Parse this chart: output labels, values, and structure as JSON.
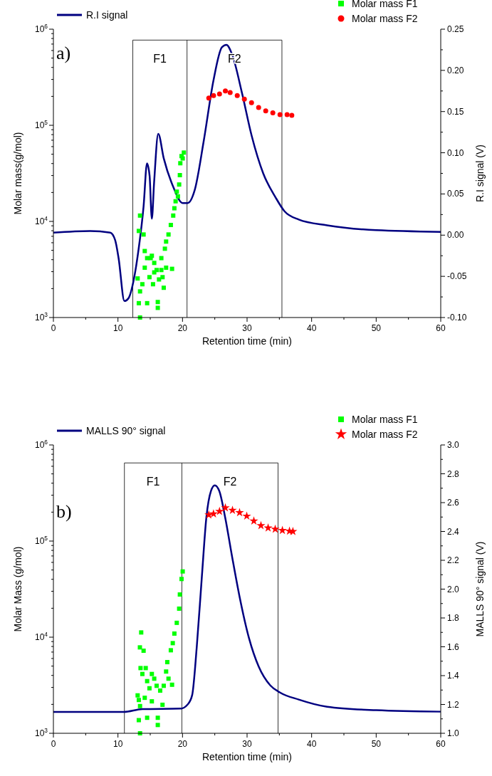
{
  "chart_data": [
    {
      "type": "scatter",
      "xlabel": "Retention time (min)",
      "ylabel": "Molar mass(g/mol)",
      "y2label": "R.I signal (V)",
      "annotations": [
        "a)",
        "F1",
        "F2"
      ],
      "ref_lines": [
        {
          "axis": "x",
          "value": 12.3,
          "color": "#000000"
        },
        {
          "axis": "x",
          "value": 20.7,
          "color": "#000000"
        },
        {
          "axis": "x",
          "value": 35.4,
          "color": "#000000"
        },
        {
          "axis": "y",
          "value": 770000,
          "color": "#000000"
        }
      ],
      "legend": "top",
      "log": "y",
      "xlim": [
        0,
        60
      ],
      "xticks": [
        0,
        {
          "value": 5,
          "label": null
        },
        10,
        {
          "value": 15,
          "label": null
        },
        20,
        {
          "value": 25,
          "label": null
        },
        30,
        {
          "value": 35,
          "label": null
        },
        40,
        {
          "value": 45,
          "label": null
        },
        50,
        {
          "value": 55,
          "label": null
        },
        60
      ],
      "ylim": [
        1000,
        1000000
      ],
      "yticks": [
        {
          "value": 1000,
          "label": "10$^{3}$"
        },
        {
          "value": 2000,
          "label": null
        },
        {
          "value": 3000,
          "label": null
        },
        {
          "value": 4000,
          "label": null
        },
        {
          "value": 5000,
          "label": null
        },
        {
          "value": 6000,
          "label": null
        },
        {
          "value": 7000,
          "label": null
        },
        {
          "value": 8000,
          "label": null
        },
        {
          "value": 9000,
          "label": null
        },
        {
          "value": 10000,
          "label": "10$^{4}$"
        },
        {
          "value": 20000,
          "label": null
        },
        {
          "value": 30000,
          "label": null
        },
        {
          "value": 40000,
          "label": null
        },
        {
          "value": 50000,
          "label": null
        },
        {
          "value": 60000,
          "label": null
        },
        {
          "value": 70000,
          "label": null
        },
        {
          "value": 80000,
          "label": null
        },
        {
          "value": 90000,
          "label": null
        },
        {
          "value": 100000,
          "label": "10$^{5}$"
        },
        {
          "value": 200000,
          "label": null
        },
        {
          "value": 300000,
          "label": null
        },
        {
          "value": 400000,
          "label": null
        },
        {
          "value": 500000,
          "label": null
        },
        {
          "value": 600000,
          "label": null
        },
        {
          "value": 700000,
          "label": null
        },
        {
          "value": 800000,
          "label": null
        },
        {
          "value": 900000,
          "label": null
        },
        {
          "value": 1000000,
          "label": "10$^{6}$"
        }
      ],
      "y2lim": [
        -0.1,
        0.25
      ],
      "y2ticks": [
        {
          "value": -0.1,
          "label": "-0.10"
        },
        {
          "value": -0.075,
          "label": null
        },
        {
          "value": -0.05,
          "label": "-0.05"
        },
        {
          "value": -0.025,
          "label": null
        },
        {
          "value": 0,
          "label": "0.00"
        },
        {
          "value": 0.025,
          "label": null
        },
        {
          "value": 0.05,
          "label": "0.05"
        },
        {
          "value": 0.075,
          "label": null
        },
        {
          "value": 0.1,
          "label": "0.10"
        },
        {
          "value": 0.125,
          "label": null
        },
        {
          "value": 0.15,
          "label": "0.15"
        },
        {
          "value": 0.175,
          "label": null
        },
        {
          "value": 0.2,
          "label": "0.20"
        },
        {
          "value": 0.225,
          "label": null
        },
        {
          "value": 0.25,
          "label": "0.25"
        }
      ],
      "series": [
        {
          "name": "R.I signal",
          "type": "line",
          "axis": "y2",
          "color": "#000080",
          "line_style": "solid",
          "x": [
            0,
            5.7,
            8.8,
            9.56,
            10.1,
            11.0,
            11.6,
            12.5,
            13.2,
            13.97,
            14.5,
            14.9,
            15.25,
            15.6,
            16.24,
            17.1,
            18.6,
            20.0,
            20.8,
            21.9,
            23.3,
            24.8,
            26.1,
            26.8,
            27.7,
            29.2,
            30.7,
            32.5,
            34.4,
            35.8,
            38.0,
            42.4,
            50,
            60
          ],
          "values": [
            0.003,
            0.005,
            0.003,
            -0.006,
            -0.028,
            -0.08,
            -0.077,
            -0.052,
            -0.017,
            0.035,
            0.087,
            0.072,
            0.02,
            0.064,
            0.123,
            0.093,
            0.058,
            0.039,
            0.039,
            0.055,
            0.115,
            0.188,
            0.228,
            0.231,
            0.219,
            0.173,
            0.121,
            0.075,
            0.046,
            0.029,
            0.019,
            0.012,
            0.006,
            0.004
          ]
        },
        {
          "name": "Molar mass F1",
          "color": "#00ff00",
          "marker": "square",
          "x": [
            13.05,
            13.23,
            13.23,
            13.42,
            13.42,
            13.42,
            13.78,
            13.97,
            14.15,
            14.15,
            14.52,
            14.52,
            14.88,
            15.07,
            15.25,
            15.43,
            15.62,
            15.62,
            15.99,
            16.17,
            16.17,
            16.36,
            16.72,
            16.72,
            16.91,
            17.09,
            17.27,
            17.46,
            17.46,
            17.83,
            18.19,
            18.38,
            18.56,
            18.74,
            18.93,
            19.11,
            19.29,
            19.48,
            19.59,
            19.66,
            19.85,
            20.03,
            20.21
          ],
          "values": [
            2550,
            7960,
            1410,
            11500,
            1870,
            1000,
            2220,
            7310,
            4920,
            3300,
            4150,
            1410,
            2630,
            4150,
            4390,
            2220,
            3700,
            2950,
            3120,
            1450,
            1260,
            2490,
            4150,
            3120,
            2630,
            2040,
            5200,
            3300,
            6170,
            7310,
            9180,
            3210,
            11500,
            13700,
            16200,
            20400,
            18200,
            24200,
            30300,
            40300,
            47800,
            45200,
            52000
          ]
        },
        {
          "name": "Molar mass F2",
          "color": "#ff0000",
          "marker": "circle",
          "x": [
            24.07,
            24.81,
            25.73,
            26.64,
            27.38,
            28.48,
            29.58,
            30.69,
            31.79,
            32.89,
            33.99,
            35.1,
            36.2,
            36.93
          ],
          "values": [
            192000,
            204000,
            212000,
            228000,
            219000,
            204000,
            187000,
            172000,
            153000,
            141000,
            135000,
            129000,
            129000,
            127000
          ]
        }
      ]
    },
    {
      "type": "scatter",
      "xlabel": "Retention time (min)",
      "ylabel": "Molar Mass (g/mol)",
      "y2label": "MALLS 90° signal (V)",
      "annotations": [
        "b)",
        "F1",
        "F2"
      ],
      "ref_lines": [
        {
          "axis": "x",
          "value": 11.0,
          "color": "#000000"
        },
        {
          "axis": "x",
          "value": 19.9,
          "color": "#000000"
        },
        {
          "axis": "x",
          "value": 34.8,
          "color": "#000000"
        },
        {
          "axis": "y",
          "value": 650000,
          "color": "#000000"
        }
      ],
      "legend": "top",
      "log": "y",
      "xlim": [
        0,
        60
      ],
      "xticks": [
        0,
        {
          "value": 5,
          "label": null
        },
        10,
        {
          "value": 15,
          "label": null
        },
        20,
        {
          "value": 25,
          "label": null
        },
        30,
        {
          "value": 35,
          "label": null
        },
        40,
        {
          "value": 45,
          "label": null
        },
        50,
        {
          "value": 55,
          "label": null
        },
        60
      ],
      "ylim": [
        1000,
        1000000
      ],
      "yticks": [
        {
          "value": 1000,
          "label": "10$^{3}$"
        },
        {
          "value": 2000,
          "label": null
        },
        {
          "value": 3000,
          "label": null
        },
        {
          "value": 4000,
          "label": null
        },
        {
          "value": 5000,
          "label": null
        },
        {
          "value": 6000,
          "label": null
        },
        {
          "value": 7000,
          "label": null
        },
        {
          "value": 8000,
          "label": null
        },
        {
          "value": 9000,
          "label": null
        },
        {
          "value": 10000,
          "label": "10$^{4}$"
        },
        {
          "value": 20000,
          "label": null
        },
        {
          "value": 30000,
          "label": null
        },
        {
          "value": 40000,
          "label": null
        },
        {
          "value": 50000,
          "label": null
        },
        {
          "value": 60000,
          "label": null
        },
        {
          "value": 70000,
          "label": null
        },
        {
          "value": 80000,
          "label": null
        },
        {
          "value": 90000,
          "label": null
        },
        {
          "value": 100000,
          "label": "10$^{5}$"
        },
        {
          "value": 200000,
          "label": null
        },
        {
          "value": 300000,
          "label": null
        },
        {
          "value": 400000,
          "label": null
        },
        {
          "value": 500000,
          "label": null
        },
        {
          "value": 600000,
          "label": null
        },
        {
          "value": 700000,
          "label": null
        },
        {
          "value": 800000,
          "label": null
        },
        {
          "value": 900000,
          "label": null
        },
        {
          "value": 1000000,
          "label": "10$^{6}$"
        }
      ],
      "y2lim": [
        1.0,
        3.0
      ],
      "y2ticks": [
        {
          "value": 1.0,
          "label": "1.0"
        },
        {
          "value": 1.1,
          "label": null
        },
        {
          "value": 1.2,
          "label": "1.2"
        },
        {
          "value": 1.3,
          "label": null
        },
        {
          "value": 1.4,
          "label": "1.4"
        },
        {
          "value": 1.5,
          "label": null
        },
        {
          "value": 1.6,
          "label": "1.6"
        },
        {
          "value": 1.7,
          "label": null
        },
        {
          "value": 1.8,
          "label": "1.8"
        },
        {
          "value": 1.9,
          "label": null
        },
        {
          "value": 2.0,
          "label": "2.0"
        },
        {
          "value": 2.1,
          "label": null
        },
        {
          "value": 2.2,
          "label": "2.2"
        },
        {
          "value": 2.3,
          "label": null
        },
        {
          "value": 2.4,
          "label": "2.4"
        },
        {
          "value": 2.5,
          "label": null
        },
        {
          "value": 2.6,
          "label": "2.6"
        },
        {
          "value": 2.7,
          "label": null
        },
        {
          "value": 2.8,
          "label": "2.8"
        },
        {
          "value": 2.9,
          "label": null
        },
        {
          "value": 3.0,
          "label": "3.0"
        }
      ],
      "series": [
        {
          "name": "MALLS 90° signal",
          "type": "line",
          "axis": "y2",
          "color": "#000080",
          "line_style": "solid",
          "x": [
            0,
            10.9,
            13.8,
            19.7,
            20.8,
            21.5,
            22.2,
            23.0,
            23.7,
            24.4,
            25.0,
            25.7,
            26.6,
            27.7,
            28.8,
            30.3,
            31.8,
            33.6,
            35.1,
            38.0,
            42.4,
            50,
            60
          ],
          "values": [
            1.148,
            1.148,
            1.168,
            1.171,
            1.2,
            1.266,
            1.595,
            2.088,
            2.499,
            2.68,
            2.72,
            2.68,
            2.499,
            2.22,
            1.956,
            1.66,
            1.463,
            1.332,
            1.283,
            1.234,
            1.184,
            1.16,
            1.15
          ]
        },
        {
          "name": "Molar mass F1",
          "color": "#00ff00",
          "marker": "square",
          "x": [
            13.05,
            13.23,
            13.23,
            13.4,
            13.42,
            13.42,
            13.5,
            13.6,
            13.78,
            13.97,
            14.15,
            14.3,
            14.52,
            14.52,
            14.88,
            15.25,
            15.25,
            15.62,
            15.99,
            16.17,
            16.17,
            16.54,
            16.9,
            17.09,
            17.46,
            17.64,
            17.83,
            18.19,
            18.38,
            18.49,
            18.74,
            19.11,
            19.48,
            19.59,
            19.85,
            20.03
          ],
          "values": [
            2480,
            2220,
            1370,
            7830,
            1920,
            1000,
            4770,
            11200,
            4140,
            7230,
            2340,
            4770,
            3490,
            1450,
            2940,
            4140,
            2150,
            3700,
            3120,
            1450,
            1220,
            2780,
            1980,
            3120,
            4390,
            5500,
            3700,
            7310,
            3200,
            8670,
            10900,
            14100,
            19800,
            27800,
            40300,
            48300
          ]
        },
        {
          "name": "Molar mass F2",
          "color": "#ff0000",
          "marker": "star",
          "x": [
            24.07,
            24.8,
            25.73,
            26.64,
            27.74,
            28.84,
            29.95,
            31.05,
            32.15,
            33.26,
            34.36,
            35.47,
            36.57,
            37.1
          ],
          "values": [
            187000,
            192000,
            204000,
            222000,
            209000,
            198000,
            182000,
            162000,
            145000,
            137000,
            133000,
            129000,
            127000,
            126000
          ]
        }
      ]
    }
  ]
}
